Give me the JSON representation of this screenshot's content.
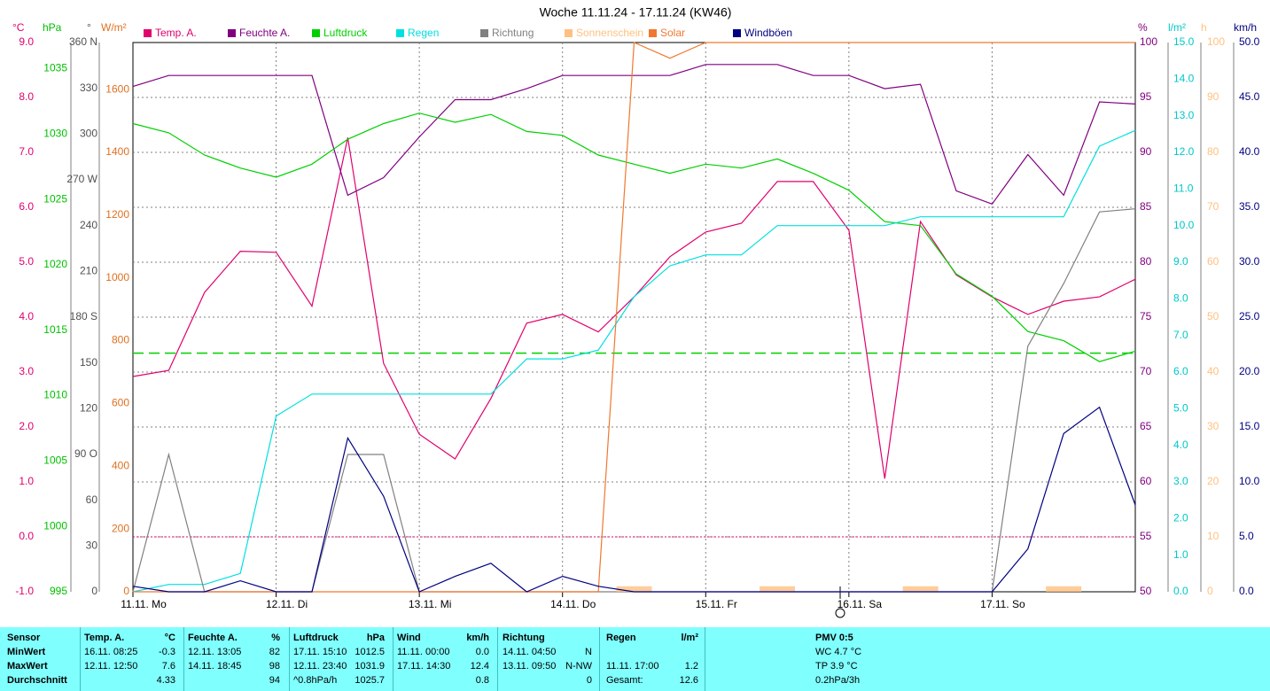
{
  "chart_data": {
    "type": "line",
    "title": "Woche 11.11.24 - 17.11.24 (KW46)",
    "x": [
      0,
      6,
      12,
      18,
      24,
      30,
      36,
      42,
      48,
      54,
      60,
      66,
      72,
      78,
      84,
      90,
      96,
      102,
      108,
      114,
      120,
      126,
      132,
      138,
      144,
      150,
      156,
      162,
      168
    ],
    "xlim": [
      0,
      168
    ],
    "xticks": [
      {
        "value": 0,
        "label": "11.11. Mo"
      },
      {
        "value": 24,
        "label": "12.11. Di"
      },
      {
        "value": 48,
        "label": "13.11. Mi"
      },
      {
        "value": 72,
        "label": "14.11. Do"
      },
      {
        "value": 96,
        "label": "15.11. Fr"
      },
      {
        "value": 120,
        "label": "16.11. Sa"
      },
      {
        "value": 144,
        "label": "17.11. So"
      }
    ],
    "grid": true,
    "axes": {
      "temp": {
        "unit": "°C",
        "ylim": [
          -1,
          9
        ],
        "color": "#e0006e",
        "ticks": [
          {
            "value": -1,
            "label": "-1.0"
          },
          {
            "value": 0,
            "label": "0.0"
          },
          {
            "value": 1,
            "label": "1.0"
          },
          {
            "value": 2,
            "label": "2.0"
          },
          {
            "value": 3,
            "label": "3.0"
          },
          {
            "value": 4,
            "label": "4.0"
          },
          {
            "value": 5,
            "label": "5.0"
          },
          {
            "value": 6,
            "label": "6.0"
          },
          {
            "value": 7,
            "label": "7.0"
          },
          {
            "value": 8,
            "label": "8.0"
          },
          {
            "value": 9,
            "label": "9.0"
          }
        ]
      },
      "hpa": {
        "unit": "hPa",
        "ylim": [
          995,
          1037
        ],
        "color": "#00c000",
        "ticks": [
          995,
          1000,
          1005,
          1010,
          1015,
          1020,
          1025,
          1030,
          1035
        ]
      },
      "dir": {
        "unit": "°",
        "ylim": [
          0,
          360
        ],
        "color": "#505050",
        "ticks": [
          0,
          30,
          60,
          {
            "value": 90,
            "label": "90 O"
          },
          120,
          150,
          {
            "value": 180,
            "label": "180 S"
          },
          210,
          240,
          {
            "value": 270,
            "label": "270 W"
          },
          300,
          330,
          {
            "value": 360,
            "label": "360 N"
          }
        ]
      },
      "solar": {
        "unit": "W/m²",
        "ylim": [
          0,
          1750
        ],
        "color": "#e07020",
        "ticks": [
          0,
          200,
          400,
          600,
          800,
          1000,
          1200,
          1400,
          1600
        ]
      },
      "hum": {
        "unit": "%",
        "ylim": [
          50,
          100
        ],
        "color": "#800080",
        "ticks": [
          50,
          55,
          60,
          65,
          70,
          75,
          80,
          85,
          90,
          95,
          100
        ]
      },
      "rain": {
        "unit": "l/m²",
        "ylim": [
          0,
          15
        ],
        "color": "#00c8c8",
        "ticks": [
          {
            "value": 0,
            "label": "0.0"
          },
          {
            "value": 1,
            "label": "1.0"
          },
          {
            "value": 2,
            "label": "2.0"
          },
          {
            "value": 3,
            "label": "3.0"
          },
          {
            "value": 4,
            "label": "4.0"
          },
          {
            "value": 5,
            "label": "5.0"
          },
          {
            "value": 6,
            "label": "6.0"
          },
          {
            "value": 7,
            "label": "7.0"
          },
          {
            "value": 8,
            "label": "8.0"
          },
          {
            "value": 9,
            "label": "9.0"
          },
          {
            "value": 10,
            "label": "10.0"
          },
          {
            "value": 11,
            "label": "11.0"
          },
          {
            "value": 12,
            "label": "12.0"
          },
          {
            "value": 13,
            "label": "13.0"
          },
          {
            "value": 14,
            "label": "14.0"
          },
          {
            "value": 15,
            "label": "15.0"
          }
        ]
      },
      "sun": {
        "unit": "h",
        "ylim": [
          0,
          100
        ],
        "color": "#ffc080",
        "ticks": [
          0,
          10,
          20,
          30,
          40,
          50,
          60,
          70,
          80,
          90,
          100
        ]
      },
      "wind": {
        "unit": "km/h",
        "ylim": [
          0,
          50
        ],
        "color": "#000080",
        "ticks": [
          {
            "value": 0,
            "label": "0.0"
          },
          {
            "value": 5,
            "label": "5.0"
          },
          {
            "value": 10,
            "label": "10.0"
          },
          {
            "value": 15,
            "label": "15.0"
          },
          {
            "value": 20,
            "label": "20.0"
          },
          {
            "value": 25,
            "label": "25.0"
          },
          {
            "value": 30,
            "label": "30.0"
          },
          {
            "value": 35,
            "label": "35.0"
          },
          {
            "value": 40,
            "label": "40.0"
          },
          {
            "value": 45,
            "label": "45.0"
          },
          {
            "value": 50,
            "label": "50.0"
          }
        ]
      }
    },
    "reference_lines": [
      {
        "axis": "hpa",
        "value": 1013.25,
        "color": "#00d000"
      },
      {
        "axis": "temp",
        "value": 0,
        "color": "#e0006e"
      }
    ],
    "series": [
      {
        "name": "Temp. A.",
        "color": "#e0006e",
        "axis": "temp",
        "values": [
          2.92,
          3.03,
          4.45,
          5.2,
          5.18,
          4.2,
          7.27,
          3.16,
          1.87,
          1.42,
          2.52,
          3.89,
          4.05,
          3.73,
          4.37,
          5.1,
          5.55,
          5.71,
          6.47,
          6.47,
          5.58,
          1.06,
          5.74,
          4.77,
          4.37,
          4.05,
          4.29,
          4.37,
          4.69
        ]
      },
      {
        "name": "Feuchte A.",
        "color": "#800080",
        "axis": "hum",
        "values": [
          96,
          97,
          97,
          97,
          97,
          97,
          86.1,
          87.7,
          91.4,
          94.8,
          94.8,
          95.8,
          97,
          97,
          97,
          97,
          98,
          98,
          98,
          97,
          97,
          95.8,
          96.2,
          86.5,
          85.3,
          89.8,
          86.1,
          94.6,
          94.4
        ]
      },
      {
        "name": "Luftdruck",
        "color": "#00d000",
        "axis": "hpa",
        "values": [
          1030.8,
          1030.1,
          1028.4,
          1027.4,
          1026.7,
          1027.7,
          1029.6,
          1030.8,
          1031.6,
          1030.9,
          1031.5,
          1030.2,
          1029.9,
          1028.4,
          1027.7,
          1027,
          1027.7,
          1027.4,
          1028.1,
          1027,
          1025.7,
          1023.3,
          1023,
          1019.3,
          1017.6,
          1014.9,
          1014.2,
          1012.6,
          1013.4
        ]
      },
      {
        "name": "Regen",
        "color": "#00e0e0",
        "axis": "rain",
        "values": [
          0,
          0.2,
          0.2,
          0.5,
          4.8,
          5.4,
          5.4,
          5.4,
          5.4,
          5.4,
          5.4,
          6.36,
          6.36,
          6.6,
          8.06,
          8.9,
          9.2,
          9.2,
          10,
          10,
          10,
          10,
          10.24,
          10.24,
          10.24,
          10.24,
          10.24,
          12.17,
          12.6
        ]
      },
      {
        "name": "Richtung",
        "color": "#808080",
        "axis": "dir",
        "values": [
          0,
          90,
          0,
          0,
          0,
          0,
          90,
          90,
          0,
          0,
          0,
          0,
          0,
          0,
          0,
          0,
          0,
          0,
          0,
          0,
          0,
          0,
          0,
          0,
          0,
          161,
          202,
          249,
          251
        ]
      },
      {
        "name": "Sonnenschein",
        "color": "#ffc080",
        "axis": "sun",
        "bars": true,
        "values": [
          0,
          0,
          0,
          0,
          0,
          0,
          0,
          0,
          0,
          0,
          0,
          0,
          0,
          0,
          1,
          0,
          0,
          0,
          1,
          0,
          0,
          0,
          1,
          0,
          0,
          0,
          1,
          0,
          0
        ]
      },
      {
        "name": "Solar",
        "color": "#f07830",
        "axis": "solar",
        "values": [
          0,
          0,
          0,
          0,
          0,
          0,
          0,
          0,
          0,
          0,
          0,
          0,
          0,
          0,
          1750,
          1700,
          1750,
          1750,
          1750,
          1750,
          1750,
          1750,
          1750,
          1750,
          1750,
          1750,
          1750,
          1750,
          1750
        ]
      },
      {
        "name": "Windböen",
        "color": "#000080",
        "axis": "wind",
        "values": [
          0.5,
          0,
          0,
          1,
          0,
          0,
          14,
          8.7,
          0,
          1.4,
          2.6,
          0,
          1.4,
          0.5,
          0,
          0,
          0,
          0,
          0,
          0,
          0,
          0,
          0,
          0,
          0,
          3.9,
          14.4,
          16.8,
          7.9
        ]
      }
    ]
  },
  "table": {
    "rows": [
      [
        "Sensor",
        "Temp. A.",
        "°C",
        "Feuchte A.",
        "%",
        "Luftdruck",
        "hPa",
        "Wind",
        "km/h",
        "Richtung",
        null,
        "Regen",
        "l/m²",
        "PMV 0:5"
      ],
      [
        "MinWert",
        "16.11. 08:25",
        "-0.3",
        "12.11. 13:05",
        "82",
        "17.11. 15:10",
        "1012.5",
        "11.11. 00:00",
        "0.0",
        "14.11. 04:50",
        "N",
        null,
        null,
        "WC 4.7 °C"
      ],
      [
        "MaxWert",
        "12.11. 12:50",
        "7.6",
        "14.11. 18:45",
        "98",
        "12.11. 23:40",
        "1031.9",
        "17.11. 14:30",
        "12.4",
        "13.11. 09:50",
        "N-NW",
        "11.11. 17:00",
        "1.2",
        "TP 3.9 °C"
      ],
      [
        "Durchschnitt",
        null,
        "4.33",
        null,
        "94",
        "^0.8hPa/h",
        "1025.7",
        null,
        "0.8",
        null,
        "0",
        "Gesamt:",
        "12.6",
        "0.2hPa/3h"
      ]
    ]
  }
}
